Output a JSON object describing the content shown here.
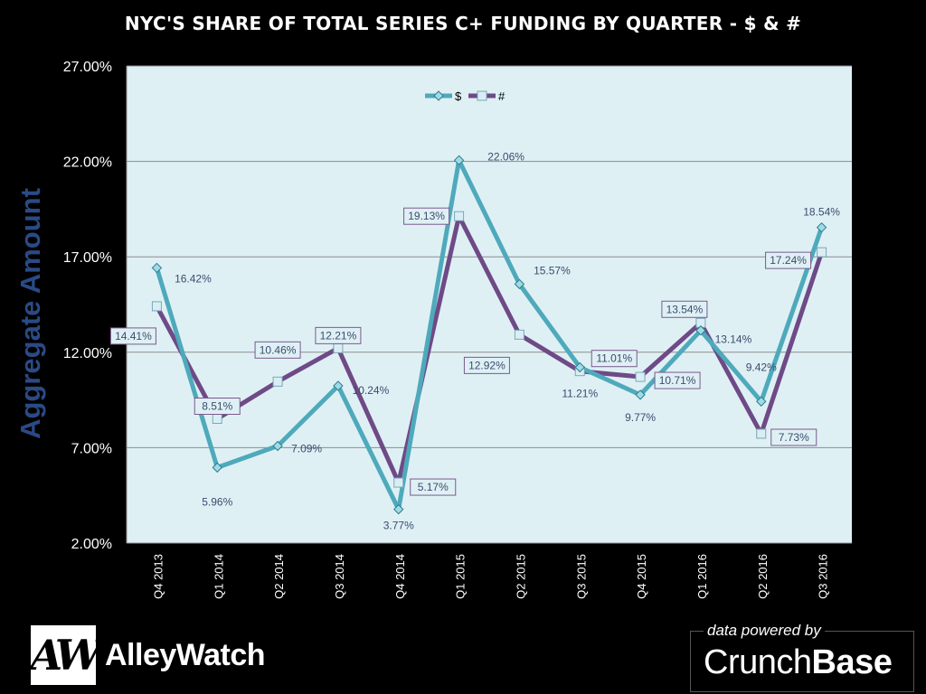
{
  "page": {
    "title": "NYC'S SHARE OF TOTAL SERIES C+ FUNDING BY QUARTER - $ & #"
  },
  "colors": {
    "background": "#000000",
    "plot_background": "#dff0f5",
    "series_dollar": "#4eaabb",
    "series_count": "#6e4a86",
    "gridline": "#8c8c8c",
    "axis_label": "#2a4a85"
  },
  "chart_data": {
    "type": "line",
    "title": "NYC'S SHARE OF TOTAL SERIES C+ FUNDING BY QUARTER - $ & #",
    "ylabel": "Aggregate Amount",
    "xlabel": "",
    "ylim": [
      2,
      27
    ],
    "yticks": [
      "27.00%",
      "22.00%",
      "17.00%",
      "12.00%",
      "7.00%",
      "2.00%"
    ],
    "ytick_values": [
      27,
      22,
      17,
      12,
      7,
      2
    ],
    "grid": true,
    "legend_position": "top-center",
    "categories": [
      "Q4 2013",
      "Q1 2014",
      "Q2 2014",
      "Q3 2014",
      "Q4 2014",
      "Q1 2015",
      "Q2 2015",
      "Q3 2015",
      "Q4 2015",
      "Q1 2016",
      "Q2 2016",
      "Q3 2016"
    ],
    "series": [
      {
        "name": "$",
        "marker": "diamond",
        "values": [
          16.42,
          5.96,
          7.09,
          10.24,
          3.77,
          22.06,
          15.57,
          11.21,
          9.77,
          13.14,
          9.42,
          18.54
        ],
        "labels": [
          "16.42%",
          "5.96%",
          "7.09%",
          "10.24%",
          "3.77%",
          "22.06%",
          "15.57%",
          "11.21%",
          "9.77%",
          "13.14%",
          "9.42%",
          "18.54%"
        ]
      },
      {
        "name": "#",
        "marker": "square",
        "values": [
          14.41,
          8.51,
          10.46,
          12.21,
          5.17,
          19.13,
          12.92,
          11.01,
          10.71,
          13.54,
          7.73,
          17.24
        ],
        "labels": [
          "14.41%",
          "8.51%",
          "10.46%",
          "12.21%",
          "5.17%",
          "19.13%",
          "12.92%",
          "11.01%",
          "10.71%",
          "13.54%",
          "7.73%",
          "17.24%"
        ]
      }
    ]
  },
  "branding": {
    "logo_mark": "AW",
    "logo_name": "AlleyWatch",
    "powered_by": "data powered by",
    "crunch": "Crunch",
    "base": "Base"
  }
}
